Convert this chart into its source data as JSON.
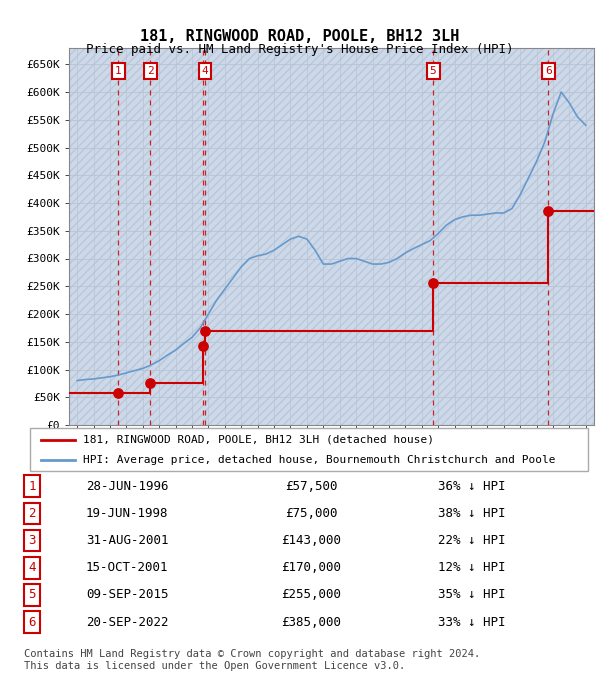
{
  "title": "181, RINGWOOD ROAD, POOLE, BH12 3LH",
  "subtitle": "Price paid vs. HM Land Registry's House Price Index (HPI)",
  "ylim": [
    0,
    680000
  ],
  "xlim_start": 1993.5,
  "xlim_end": 2025.5,
  "sale_points": [
    {
      "num": 1,
      "year": 1996.49,
      "price": 57500
    },
    {
      "num": 2,
      "year": 1998.46,
      "price": 75000
    },
    {
      "num": 3,
      "year": 2001.66,
      "price": 143000
    },
    {
      "num": 4,
      "year": 2001.79,
      "price": 170000
    },
    {
      "num": 5,
      "year": 2015.69,
      "price": 255000
    },
    {
      "num": 6,
      "year": 2022.72,
      "price": 385000
    }
  ],
  "sale_line_color": "#cc0000",
  "sale_marker_color": "#cc0000",
  "hpi_line_color": "#6699cc",
  "legend_items": [
    "181, RINGWOOD ROAD, POOLE, BH12 3LH (detached house)",
    "HPI: Average price, detached house, Bournemouth Christchurch and Poole"
  ],
  "table_rows": [
    {
      "num": 1,
      "date": "28-JUN-1996",
      "price": "£57,500",
      "pct": "36% ↓ HPI"
    },
    {
      "num": 2,
      "date": "19-JUN-1998",
      "price": "£75,000",
      "pct": "38% ↓ HPI"
    },
    {
      "num": 3,
      "date": "31-AUG-2001",
      "price": "£143,000",
      "pct": "22% ↓ HPI"
    },
    {
      "num": 4,
      "date": "15-OCT-2001",
      "price": "£170,000",
      "pct": "12% ↓ HPI"
    },
    {
      "num": 5,
      "date": "09-SEP-2015",
      "price": "£255,000",
      "pct": "35% ↓ HPI"
    },
    {
      "num": 6,
      "date": "20-SEP-2022",
      "price": "£385,000",
      "pct": "33% ↓ HPI"
    }
  ],
  "footer": "Contains HM Land Registry data © Crown copyright and database right 2024.\nThis data is licensed under the Open Government Licence v3.0.",
  "hpi_years": [
    1994.0,
    1994.5,
    1995.0,
    1995.5,
    1996.0,
    1996.5,
    1997.0,
    1997.5,
    1998.0,
    1998.5,
    1999.0,
    1999.5,
    2000.0,
    2000.5,
    2001.0,
    2001.5,
    2002.0,
    2002.5,
    2003.0,
    2003.5,
    2004.0,
    2004.5,
    2005.0,
    2005.5,
    2006.0,
    2006.5,
    2007.0,
    2007.5,
    2008.0,
    2008.5,
    2009.0,
    2009.5,
    2010.0,
    2010.5,
    2011.0,
    2011.5,
    2012.0,
    2012.5,
    2013.0,
    2013.5,
    2014.0,
    2014.5,
    2015.0,
    2015.5,
    2016.0,
    2016.5,
    2017.0,
    2017.5,
    2018.0,
    2018.5,
    2019.0,
    2019.5,
    2020.0,
    2020.5,
    2021.0,
    2021.5,
    2022.0,
    2022.5,
    2023.0,
    2023.5,
    2024.0,
    2024.5,
    2025.0
  ],
  "hpi_values": [
    80000,
    82000,
    83000,
    85000,
    87000,
    90000,
    94000,
    98000,
    102000,
    108000,
    116000,
    126000,
    135000,
    147000,
    158000,
    175000,
    200000,
    225000,
    245000,
    265000,
    285000,
    300000,
    305000,
    308000,
    315000,
    325000,
    335000,
    340000,
    335000,
    315000,
    290000,
    290000,
    295000,
    300000,
    300000,
    295000,
    290000,
    290000,
    293000,
    300000,
    310000,
    318000,
    325000,
    332000,
    345000,
    360000,
    370000,
    375000,
    378000,
    378000,
    380000,
    382000,
    382000,
    390000,
    415000,
    445000,
    475000,
    510000,
    560000,
    600000,
    580000,
    555000,
    540000
  ],
  "box_numbers_shown": [
    1,
    2,
    4,
    5,
    6
  ],
  "y_ticks": [
    0,
    50000,
    100000,
    150000,
    200000,
    250000,
    300000,
    350000,
    400000,
    450000,
    500000,
    550000,
    600000,
    650000
  ],
  "y_tick_labels": [
    "£0",
    "£50K",
    "£100K",
    "£150K",
    "£200K",
    "£250K",
    "£300K",
    "£350K",
    "£400K",
    "£450K",
    "£500K",
    "£550K",
    "£600K",
    "£650K"
  ]
}
